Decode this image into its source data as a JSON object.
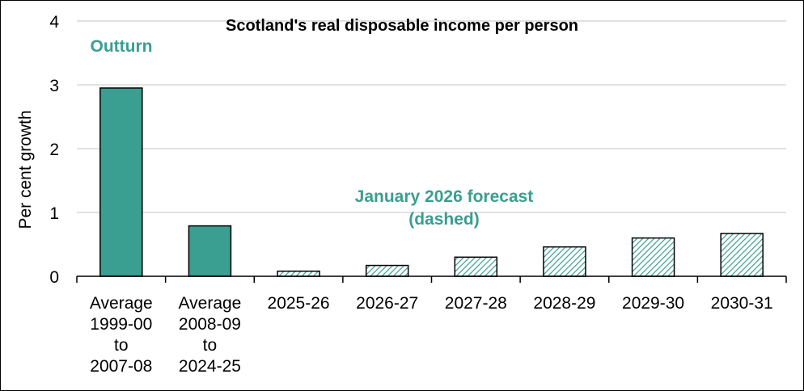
{
  "chart_data": {
    "type": "bar",
    "title": "Scotland's real disposable income per person",
    "ylabel": "Per cent growth",
    "xlabel": "",
    "ylim": [
      0,
      4
    ],
    "yticks": [
      "0",
      "1",
      "2",
      "3",
      "4"
    ],
    "grid": true,
    "categories": [
      [
        "Average",
        "1999-00",
        "to",
        "2007-08"
      ],
      [
        "Average",
        "2008-09",
        "to",
        "2024-25"
      ],
      [
        "2025-26"
      ],
      [
        "2026-27"
      ],
      [
        "2027-28"
      ],
      [
        "2028-29"
      ],
      [
        "2029-30"
      ],
      [
        "2030-31"
      ]
    ],
    "values": [
      2.95,
      0.79,
      0.08,
      0.17,
      0.3,
      0.46,
      0.6,
      0.67
    ],
    "styles": [
      "solid",
      "solid",
      "hatched",
      "hatched",
      "hatched",
      "hatched",
      "hatched",
      "hatched"
    ],
    "annotations": {
      "outturn": "Outturn",
      "forecast_line1": "January 2026 forecast",
      "forecast_line2": "(dashed)"
    },
    "colors": {
      "bar": "#3a9e90",
      "annotation": "#3a9e90",
      "grid": "#d9d9d9"
    }
  }
}
